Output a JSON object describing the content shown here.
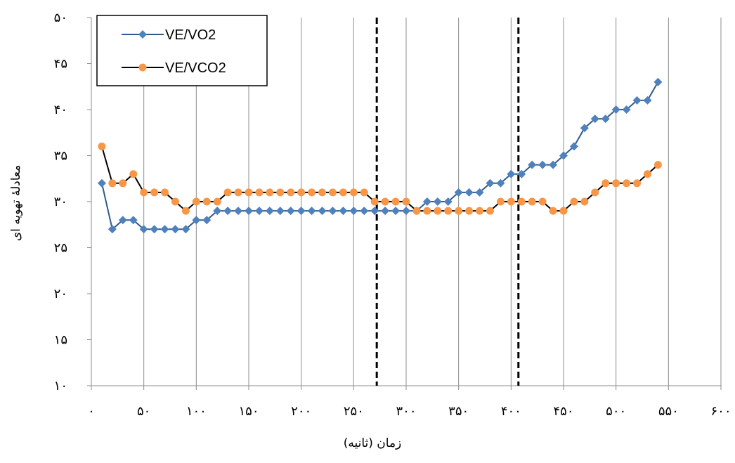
{
  "chart_data": {
    "type": "line",
    "title": "",
    "xlabel": "زمان (ثانیه)",
    "ylabel": "معادلۀ تهویه ای",
    "xlim": [
      0,
      600
    ],
    "ylim": [
      10,
      50
    ],
    "x_ticks": [
      0,
      50,
      100,
      150,
      200,
      250,
      300,
      350,
      400,
      450,
      500,
      550,
      600
    ],
    "x_tick_labels": [
      "۰",
      "۵۰",
      "۱۰۰",
      "۱۵۰",
      "۲۰۰",
      "۲۵۰",
      "۳۰۰",
      "۳۵۰",
      "۴۰۰",
      "۴۵۰",
      "۵۰۰",
      "۵۵۰",
      "۶۰۰"
    ],
    "y_ticks": [
      10,
      15,
      20,
      25,
      30,
      35,
      40,
      45,
      50
    ],
    "y_tick_labels": [
      "۱۰",
      "۱۵",
      "۲۰",
      "۲۵",
      "۳۰",
      "۳۵",
      "۴۰",
      "۴۵",
      "۵۰"
    ],
    "grid": "vertical",
    "legend_position": "top-left",
    "vertical_markers": [
      {
        "x": 272,
        "style": "dashed"
      },
      {
        "x": 407,
        "style": "dashed"
      }
    ],
    "x": [
      10,
      20,
      30,
      40,
      50,
      60,
      70,
      80,
      90,
      100,
      110,
      120,
      130,
      140,
      150,
      160,
      170,
      180,
      190,
      200,
      210,
      220,
      230,
      240,
      250,
      260,
      270,
      280,
      290,
      300,
      310,
      320,
      330,
      340,
      350,
      360,
      370,
      380,
      390,
      400,
      410,
      420,
      430,
      440,
      450,
      460,
      470,
      480,
      490,
      500,
      510,
      520,
      530,
      540
    ],
    "series": [
      {
        "name": "VE/VO2",
        "color": "#4F81BD",
        "line_color": "#2E5A8C",
        "marker": "diamond",
        "values": [
          32,
          27,
          28,
          28,
          27,
          27,
          27,
          27,
          27,
          28,
          28,
          29,
          29,
          29,
          29,
          29,
          29,
          29,
          29,
          29,
          29,
          29,
          29,
          29,
          29,
          29,
          29,
          29,
          29,
          29,
          29,
          30,
          30,
          30,
          31,
          31,
          31,
          32,
          32,
          33,
          33,
          34,
          34,
          34,
          35,
          36,
          38,
          39,
          39,
          40,
          40,
          41,
          41,
          43
        ]
      },
      {
        "name": "VE/VCO2",
        "color": "#F79646",
        "line_color": "#000000",
        "marker": "circle",
        "values": [
          36,
          32,
          32,
          33,
          31,
          31,
          31,
          30,
          29,
          30,
          30,
          30,
          31,
          31,
          31,
          31,
          31,
          31,
          31,
          31,
          31,
          31,
          31,
          31,
          31,
          31,
          30,
          30,
          30,
          30,
          29,
          29,
          29,
          29,
          29,
          29,
          29,
          29,
          30,
          30,
          30,
          30,
          30,
          29,
          29,
          30,
          30,
          31,
          32,
          32,
          32,
          32,
          33,
          34
        ]
      }
    ]
  }
}
